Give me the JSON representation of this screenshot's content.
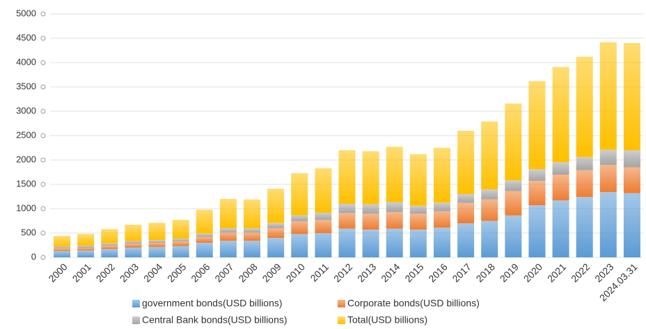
{
  "chart_data": {
    "type": "stacked_bar",
    "categories": [
      "2000",
      "2001",
      "2002",
      "2003",
      "2004",
      "2005",
      "2006",
      "2007",
      "2008",
      "2009",
      "2010",
      "2011",
      "2012",
      "2013",
      "2014",
      "2015",
      "2016",
      "2017",
      "2018",
      "2019",
      "2020",
      "2021",
      "2022",
      "2023",
      "2024.03.31"
    ],
    "series": [
      {
        "name": "government bonds(USD billions)",
        "color": "#5b9bd5",
        "values": [
          130,
          140,
          170,
          200,
          210,
          230,
          300,
          340,
          340,
          400,
          480,
          500,
          590,
          570,
          590,
          570,
          610,
          700,
          750,
          860,
          1070,
          1170,
          1240,
          1340,
          1320
        ]
      },
      {
        "name": "Corporate bonds(USD billions)",
        "color": "#ed7d31",
        "values": [
          55,
          60,
          70,
          85,
          90,
          95,
          120,
          170,
          170,
          200,
          260,
          270,
          320,
          330,
          340,
          330,
          340,
          420,
          440,
          500,
          500,
          530,
          550,
          560,
          530
        ]
      },
      {
        "name": "Central Bank bonds(USD billions)",
        "color": "#a5a5a5",
        "values": [
          35,
          40,
          50,
          50,
          55,
          60,
          70,
          90,
          85,
          105,
          125,
          145,
          190,
          190,
          205,
          160,
          175,
          180,
          205,
          220,
          240,
          255,
          270,
          310,
          350
        ]
      },
      {
        "name": "Total(USD billions)",
        "color": "#ffc000",
        "values": [
          220,
          240,
          290,
          335,
          355,
          385,
          490,
          600,
          595,
          705,
          865,
          915,
          1100,
          1090,
          1135,
          1060,
          1125,
          1300,
          1395,
          1580,
          1810,
          1955,
          2060,
          2210,
          2200
        ]
      }
    ],
    "ylim": [
      0,
      5000
    ],
    "yticks": [
      0,
      500,
      1000,
      1500,
      2000,
      2500,
      3000,
      3500,
      4000,
      4500,
      5000
    ],
    "grid": true
  }
}
